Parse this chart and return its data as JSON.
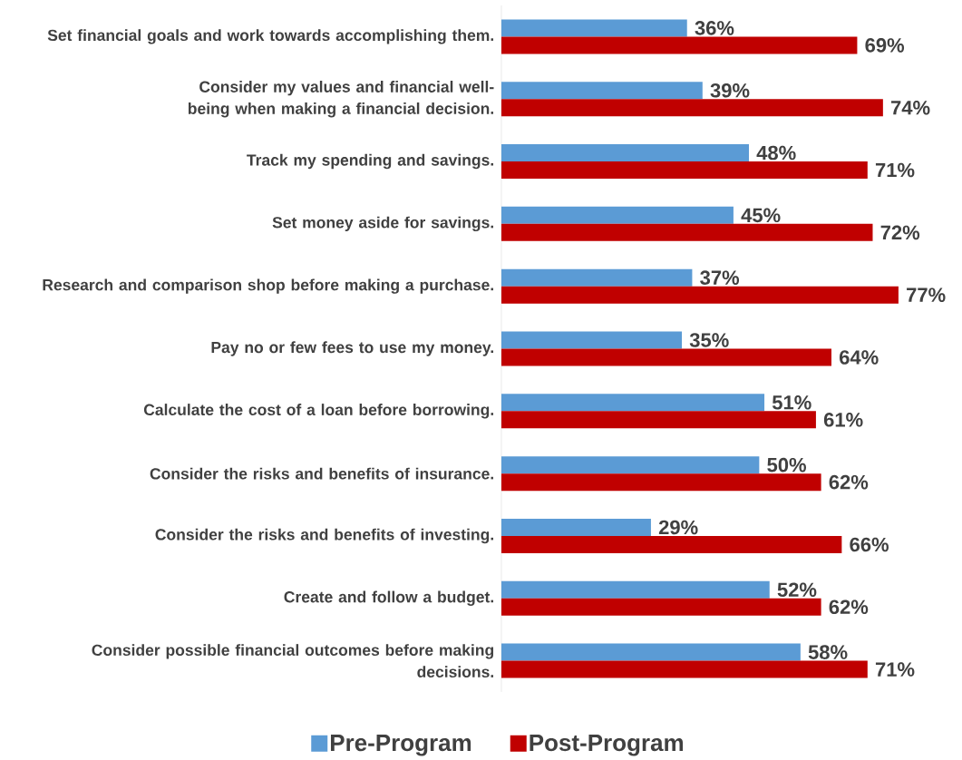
{
  "chart_data": {
    "type": "bar",
    "orientation": "horizontal",
    "categories": [
      "Set financial goals and work towards accomplishing them.",
      "Consider my values and financial well-being when making a financial decision.",
      "Track my spending and savings.",
      "Set money aside for savings.",
      "Research and comparison shop before making a purchase.",
      "Pay no or few fees to use my money.",
      "Calculate the cost of a loan before borrowing.",
      "Consider the risks and benefits of insurance.",
      "Consider the risks and benefits of investing.",
      "Create and follow a budget.",
      "Consider possible financial outcomes before making decisions."
    ],
    "series": [
      {
        "name": "Pre-Program",
        "color": "#5b9bd5",
        "values": [
          36,
          39,
          48,
          45,
          37,
          35,
          51,
          50,
          29,
          52,
          58
        ],
        "value_labels": [
          "36%",
          "39%",
          "48%",
          "45%",
          "37%",
          "35%",
          "51%",
          "50%",
          "29%",
          "52%",
          "58%"
        ]
      },
      {
        "name": "Post-Program",
        "color": "#c00000",
        "values": [
          69,
          74,
          71,
          72,
          77,
          64,
          61,
          62,
          66,
          62,
          71
        ],
        "value_labels": [
          "69%",
          "74%",
          "71%",
          "72%",
          "77%",
          "64%",
          "61%",
          "62%",
          "66%",
          "62%",
          "71%"
        ]
      }
    ],
    "legend": "bottom"
  }
}
